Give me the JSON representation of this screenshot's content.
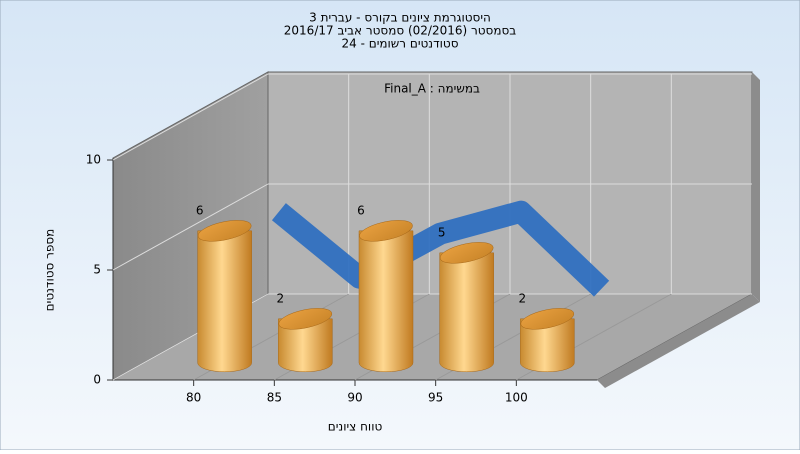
{
  "chart_data": {
    "type": "bar",
    "title": [
      "היסטוגרמת ציונים בקורס - עברית 3",
      "בסמסטר  (02/2016)  סמסטר אביב 2016/17",
      "סטודנטים רשומים - 24"
    ],
    "annotation": "Final_A : במשימה",
    "x_label": "טווח ציונים",
    "y_label": "מספר סטודנטים",
    "x": [
      80,
      85,
      90,
      95,
      100
    ],
    "series": [
      {
        "type": "bar",
        "color": "#f0a848",
        "values": [
          6,
          2,
          6,
          5,
          2
        ]
      },
      {
        "type": "line",
        "color": "#3070c0",
        "values": [
          5.5,
          2.5,
          4.5,
          5.5,
          2
        ]
      }
    ],
    "xlim": [
      75,
      105
    ],
    "xticks": [
      80,
      85,
      90,
      95,
      100
    ],
    "ylim": [
      0,
      10
    ],
    "yticks": [
      0,
      5,
      10
    ],
    "grid": true
  }
}
